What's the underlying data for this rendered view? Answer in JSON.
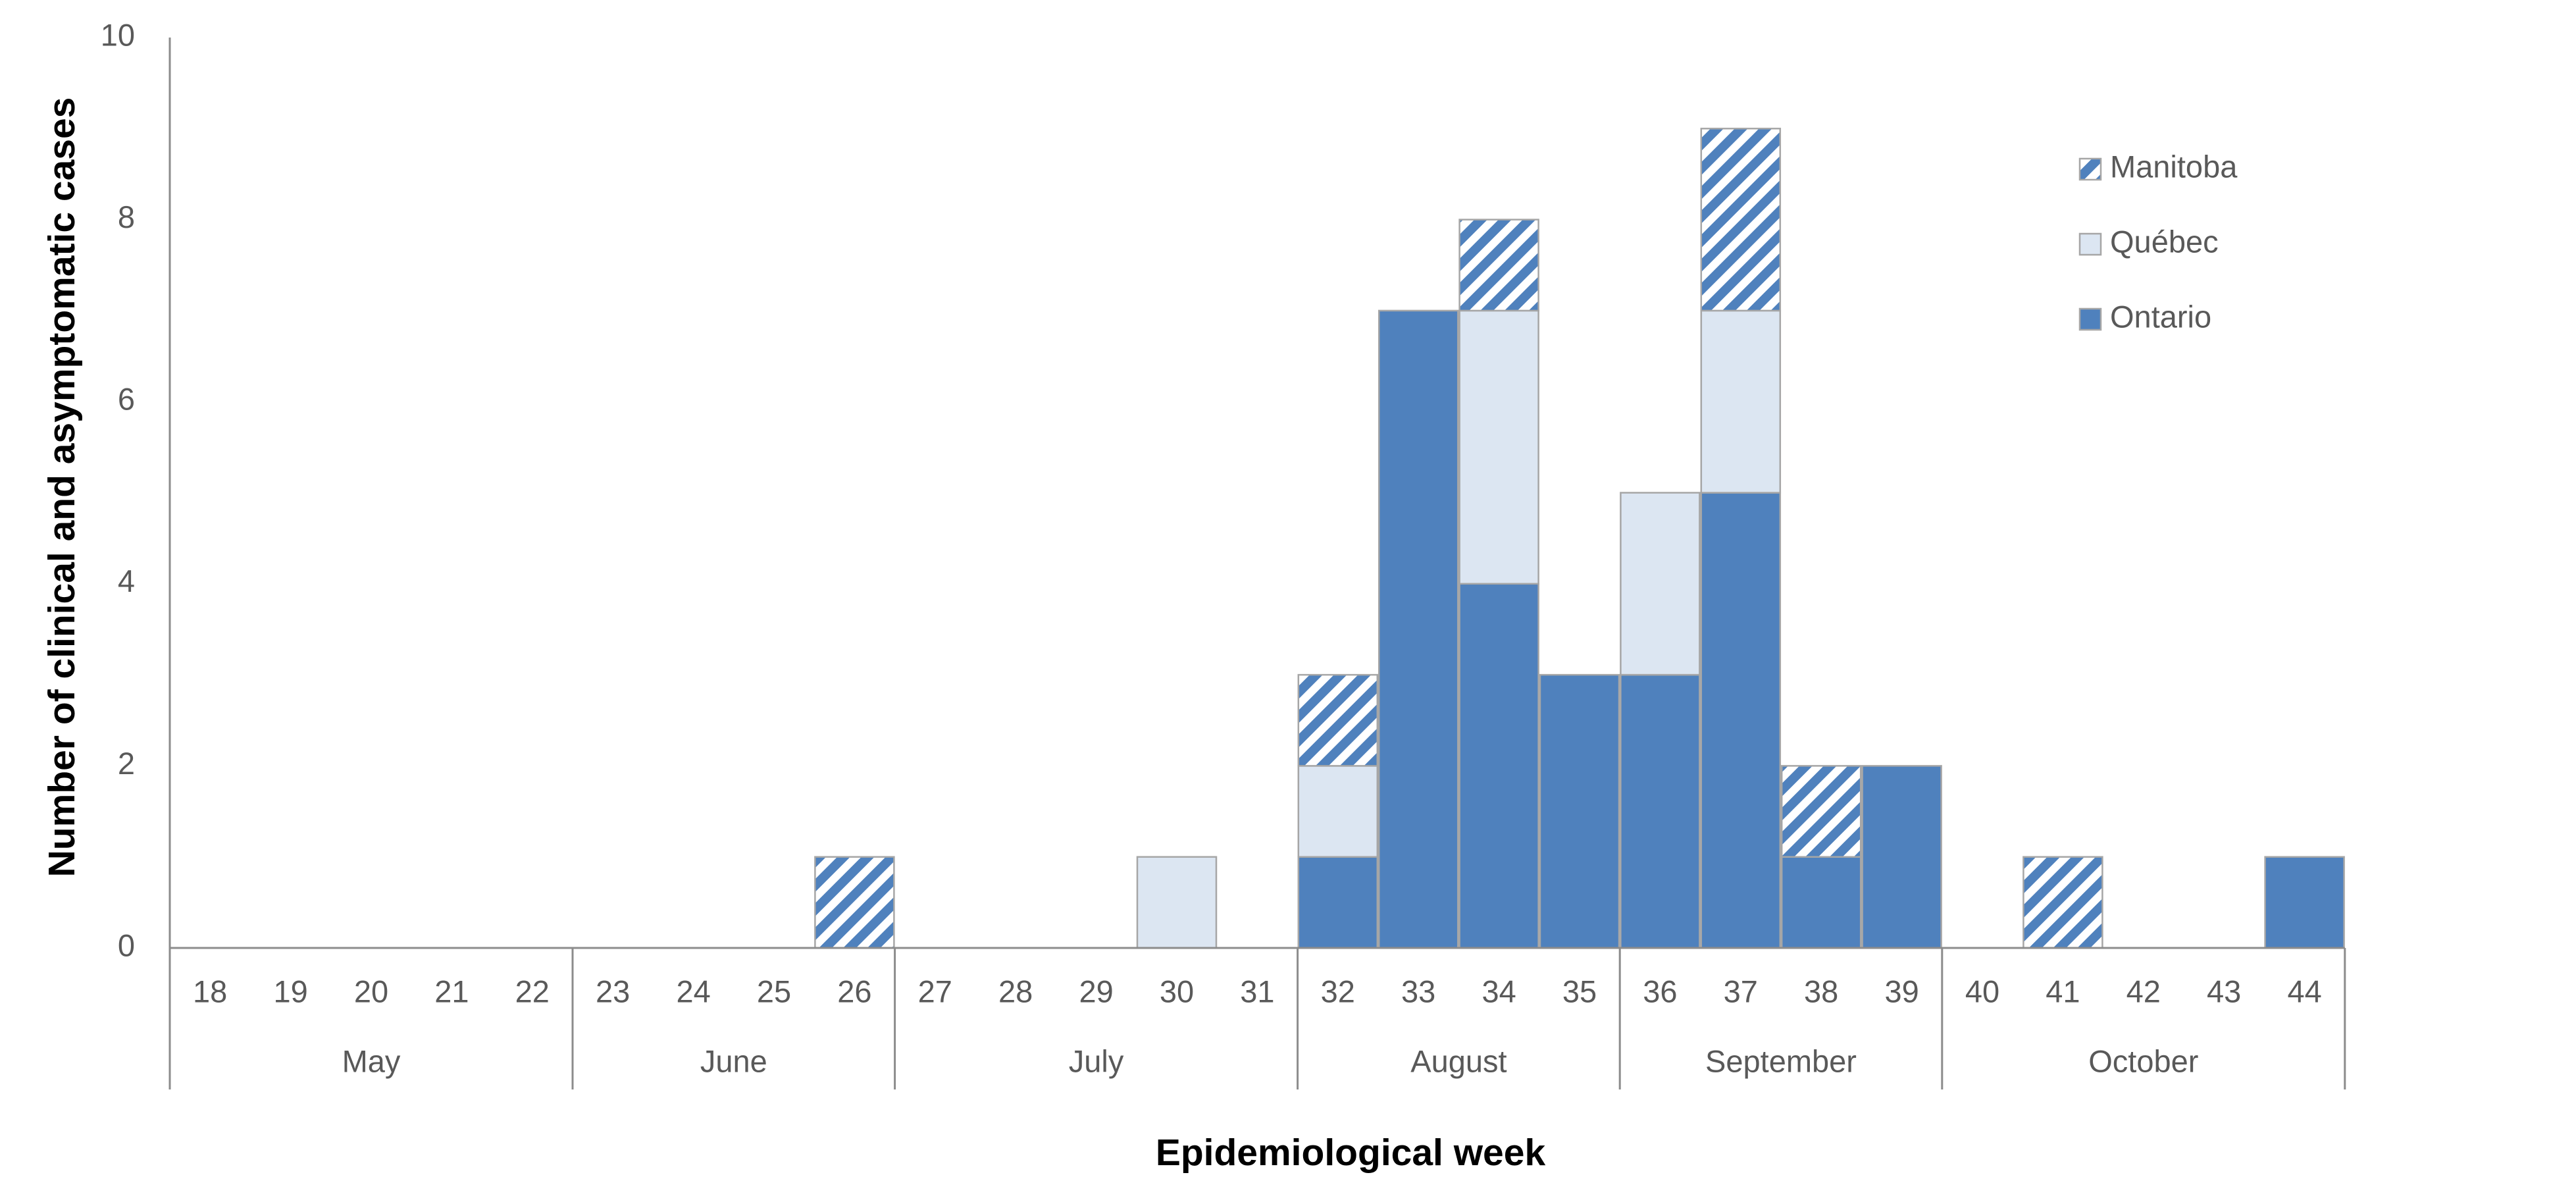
{
  "chart_data": {
    "type": "bar",
    "stacked": true,
    "title": "",
    "xlabel": "Epidemiological week",
    "ylabel": "Number of clinical and asymptomatic cases",
    "ylim": [
      0,
      10
    ],
    "yticks": [
      0,
      2,
      4,
      6,
      8,
      10
    ],
    "grid": false,
    "legend_position": "top-right",
    "categories": [
      "18",
      "19",
      "20",
      "21",
      "22",
      "23",
      "24",
      "25",
      "26",
      "27",
      "28",
      "29",
      "30",
      "31",
      "32",
      "33",
      "34",
      "35",
      "36",
      "37",
      "38",
      "39",
      "40",
      "41",
      "42",
      "43",
      "44"
    ],
    "months": [
      {
        "label": "May",
        "start": "18",
        "end": "22"
      },
      {
        "label": "June",
        "start": "23",
        "end": "26"
      },
      {
        "label": "July",
        "start": "27",
        "end": "31"
      },
      {
        "label": "August",
        "start": "32",
        "end": "35"
      },
      {
        "label": "September",
        "start": "36",
        "end": "39"
      },
      {
        "label": "October",
        "start": "40",
        "end": "44"
      }
    ],
    "series": [
      {
        "name": "Ontario",
        "color": "#4f81bd",
        "pattern": "solid",
        "values": [
          0,
          0,
          0,
          0,
          0,
          0,
          0,
          0,
          0,
          0,
          0,
          0,
          0,
          0,
          1,
          7,
          4,
          3,
          3,
          5,
          1,
          2,
          0,
          0,
          0,
          0,
          1
        ]
      },
      {
        "name": "Québec",
        "color": "#dce6f2",
        "pattern": "solid",
        "values": [
          0,
          0,
          0,
          0,
          0,
          0,
          0,
          0,
          0,
          0,
          0,
          0,
          1,
          0,
          1,
          0,
          3,
          0,
          2,
          2,
          0,
          0,
          0,
          0,
          0,
          0,
          0
        ]
      },
      {
        "name": "Manitoba",
        "color": "#4f81bd",
        "pattern": "diagonal-stripes",
        "values": [
          0,
          0,
          0,
          0,
          0,
          0,
          0,
          0,
          1,
          0,
          0,
          0,
          0,
          0,
          1,
          0,
          1,
          0,
          0,
          2,
          1,
          0,
          0,
          1,
          0,
          0,
          0
        ]
      }
    ],
    "legend_order": [
      "Manitoba",
      "Québec",
      "Ontario"
    ]
  }
}
